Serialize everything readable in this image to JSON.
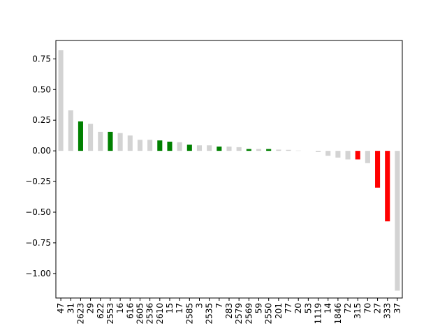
{
  "chart_data": {
    "type": "bar",
    "title": "",
    "xlabel": "",
    "ylabel": "",
    "ylim": [
      -1.2,
      0.9
    ],
    "yticks": [
      -1.0,
      -0.75,
      -0.5,
      -0.25,
      0.0,
      0.25,
      0.5,
      0.75
    ],
    "ytick_labels": [
      "−1.00",
      "−0.75",
      "−0.50",
      "−0.25",
      "0.00",
      "0.25",
      "0.50",
      "0.75"
    ],
    "categories": [
      "47",
      "31",
      "2623",
      "29",
      "622",
      "2553",
      "16",
      "616",
      "2605",
      "2536",
      "2610",
      "15",
      "17",
      "2585",
      "3",
      "2535",
      "7",
      "283",
      "2579",
      "2569",
      "59",
      "2550",
      "201",
      "77",
      "20",
      "53",
      "1119",
      "14",
      "1846",
      "72",
      "315",
      "70",
      "27",
      "333",
      "37"
    ],
    "values": [
      0.82,
      0.33,
      0.24,
      0.22,
      0.155,
      0.155,
      0.145,
      0.125,
      0.09,
      0.09,
      0.085,
      0.075,
      0.07,
      0.05,
      0.045,
      0.045,
      0.035,
      0.035,
      0.03,
      0.015,
      0.015,
      0.015,
      0.01,
      0.008,
      0.002,
      0.0,
      -0.01,
      -0.04,
      -0.055,
      -0.07,
      -0.07,
      -0.1,
      -0.3,
      -0.575,
      -1.14
    ],
    "bar_colors": [
      "#d3d3d3",
      "#d3d3d3",
      "#008000",
      "#d3d3d3",
      "#d3d3d3",
      "#008000",
      "#d3d3d3",
      "#d3d3d3",
      "#d3d3d3",
      "#d3d3d3",
      "#008000",
      "#008000",
      "#d3d3d3",
      "#008000",
      "#d3d3d3",
      "#d3d3d3",
      "#008000",
      "#d3d3d3",
      "#d3d3d3",
      "#008000",
      "#d3d3d3",
      "#008000",
      "#d3d3d3",
      "#d3d3d3",
      "#d3d3d3",
      "#d3d3d3",
      "#d3d3d3",
      "#d3d3d3",
      "#d3d3d3",
      "#d3d3d3",
      "#ff0000",
      "#d3d3d3",
      "#ff0000",
      "#ff0000",
      "#d3d3d3"
    ],
    "grid": false,
    "legend": "none"
  }
}
